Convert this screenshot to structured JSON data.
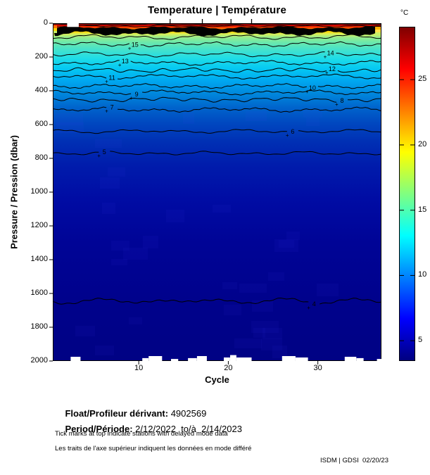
{
  "title": "Temperature | Température",
  "colorbar_unit": "°C",
  "y_axis_label": "Pressure / Pression (dbar)",
  "x_axis_label": "Cycle",
  "footer": {
    "float_label": "Float/Profileur dérivant:",
    "float_value": " 4902569",
    "period_label": "Period/Période:",
    "period_value": " 2/12/2022  to/à  2/14/2023",
    "note_en": "Tick marks at top indicate stations with delayed mode data",
    "note_fr": "Les traits de l'axe supérieur indiquent les données en mode différé",
    "credit": "ISDM | GDSI  02/20/23"
  },
  "chart_data": {
    "type": "heatmap",
    "subtype": "filled-contour-depth-section",
    "title": "Temperature | Température",
    "xlabel": "Cycle",
    "ylabel": "Pressure / Pression (dbar)",
    "x_range": [
      0.4,
      37.1
    ],
    "x_ticks": [
      10,
      20,
      30
    ],
    "y_range": [
      0,
      2000
    ],
    "y_ticks": [
      0,
      200,
      400,
      600,
      800,
      1000,
      1200,
      1400,
      1600,
      1800,
      2000
    ],
    "y_inverted": true,
    "colormap": "jet",
    "colorbar": {
      "label": "°C",
      "min": 3.5,
      "max": 29,
      "ticks": [
        25,
        20,
        15,
        10,
        5
      ]
    },
    "surface_strip": {
      "temp_degC": "26-29",
      "depth_dbar": [
        0,
        25
      ]
    },
    "dense_isotherm_band_dbar": [
      26,
      62
    ],
    "isotherms": [
      {
        "level_degC": 16,
        "mean_depth_dbar": 82,
        "label_x_frac": null
      },
      {
        "level_degC": 15,
        "mean_depth_dbar": 125,
        "label_x_frac": 0.25
      },
      {
        "level_degC": 14,
        "mean_depth_dbar": 185,
        "label_x_frac": 0.845
      },
      {
        "level_degC": 13,
        "mean_depth_dbar": 235,
        "label_x_frac": 0.22
      },
      {
        "level_degC": 12,
        "mean_depth_dbar": 278,
        "label_x_frac": 0.85
      },
      {
        "level_degC": 11,
        "mean_depth_dbar": 315,
        "label_x_frac": 0.18
      },
      {
        "level_degC": 10,
        "mean_depth_dbar": 372,
        "label_x_frac": 0.79
      },
      {
        "level_degC": 9,
        "mean_depth_dbar": 410,
        "label_x_frac": 0.255
      },
      {
        "level_degC": 8,
        "mean_depth_dbar": 452,
        "label_x_frac": 0.88
      },
      {
        "level_degC": 7,
        "mean_depth_dbar": 512,
        "label_x_frac": 0.18
      },
      {
        "level_degC": 6,
        "mean_depth_dbar": 640,
        "label_x_frac": 0.73
      },
      {
        "level_degC": 5,
        "mean_depth_dbar": 770,
        "label_x_frac": 0.157
      },
      {
        "level_degC": 4,
        "mean_depth_dbar": 1645,
        "label_x_frac": 0.795
      }
    ],
    "bottom_temp_degC": 3.5,
    "delayed_mode_tick_cycles": [
      13.5,
      17.1,
      20.3,
      22.6
    ],
    "surface_data_gap": {
      "cycle_range": [
        2.0,
        3.3
      ],
      "depth_dbar": [
        0,
        22
      ]
    },
    "bottom_data_gaps": [
      {
        "cycle_range": [
          2.4,
          3.5
        ],
        "max_depth_dbar": 1975
      },
      {
        "cycle_range": [
          10.4,
          11.1
        ],
        "max_depth_dbar": 1983
      },
      {
        "cycle_range": [
          11.1,
          12.6
        ],
        "max_depth_dbar": 1971
      },
      {
        "cycle_range": [
          13.6,
          14.4
        ],
        "max_depth_dbar": 1988
      },
      {
        "cycle_range": [
          15.5,
          16.5
        ],
        "max_depth_dbar": 1983
      },
      {
        "cycle_range": [
          16.5,
          17.6
        ],
        "max_depth_dbar": 1971
      },
      {
        "cycle_range": [
          19.5,
          20.2
        ],
        "max_depth_dbar": 1979
      },
      {
        "cycle_range": [
          20.2,
          20.9
        ],
        "max_depth_dbar": 1965
      },
      {
        "cycle_range": [
          20.9,
          22.6
        ],
        "max_depth_dbar": 1979
      },
      {
        "cycle_range": [
          26.0,
          27.5
        ],
        "max_depth_dbar": 1971
      },
      {
        "cycle_range": [
          27.5,
          28.9
        ],
        "max_depth_dbar": 1979
      },
      {
        "cycle_range": [
          33.0,
          34.3
        ],
        "max_depth_dbar": 1975
      },
      {
        "cycle_range": [
          34.3,
          35.1
        ],
        "max_depth_dbar": 1983
      },
      {
        "cycle_range": [
          36.6,
          37.1
        ],
        "max_depth_dbar": 1988
      }
    ],
    "accent_colors": {
      "surface": "#8a0000",
      "deep_water": "#000284",
      "contour_line": "#000000"
    }
  }
}
